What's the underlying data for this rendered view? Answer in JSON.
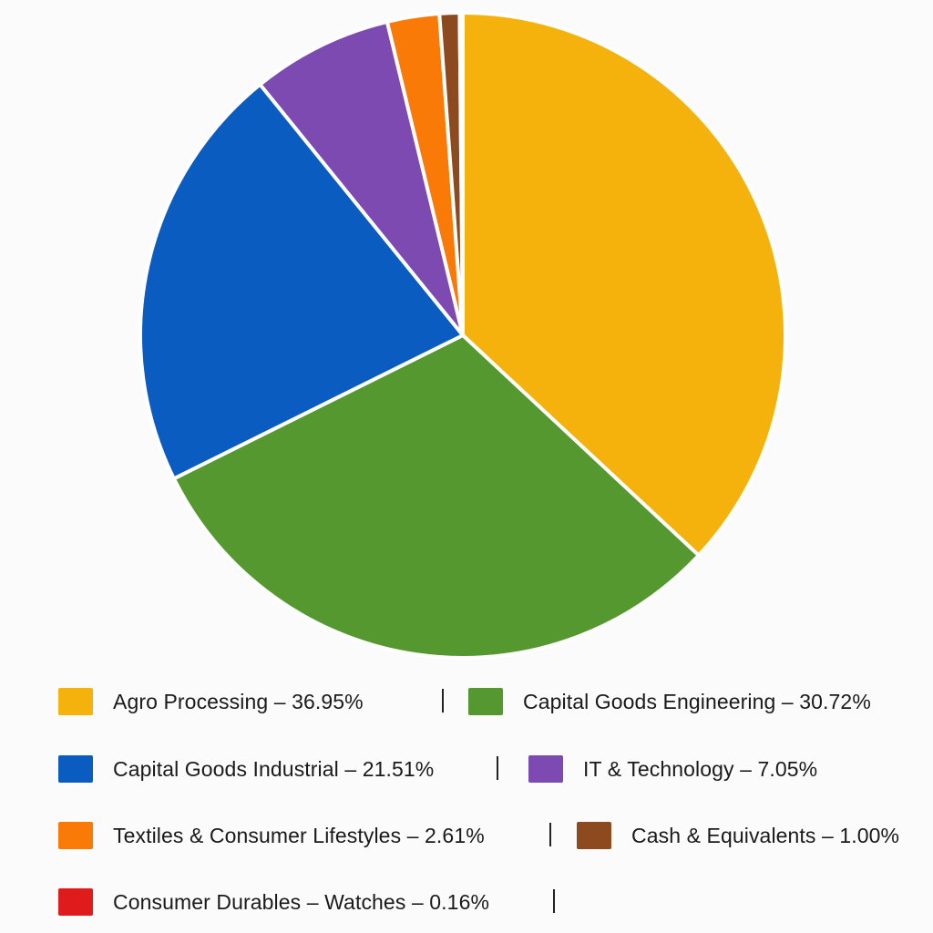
{
  "chart_data": {
    "type": "pie",
    "title": "",
    "slices": [
      {
        "label": "Agro Processing – 36.95%",
        "value": 36.95,
        "color": "#F6B20C"
      },
      {
        "label": "Capital Goods Engineering – 30.72%",
        "value": 30.72,
        "color": "#54982F"
      },
      {
        "label": "Capital Goods Industrial – 21.51%",
        "value": 21.51,
        "color": "#0B5CC0"
      },
      {
        "label": "IT & Technology – 7.05%",
        "value": 7.05,
        "color": "#7C4AB1"
      },
      {
        "label": "Textiles & Consumer Lifestyles – 2.61%",
        "value": 2.61,
        "color": "#FA7A08"
      },
      {
        "label": "Cash & Equivalents – 1.00%",
        "value": 1.0,
        "color": "#8D4A1E"
      },
      {
        "label": "Consumer Durables – Watches – 0.16%",
        "value": 0.16,
        "color": "#E01B1B"
      }
    ],
    "legend_placement": "bottom",
    "start_angle": "12 o'clock, clockwise"
  },
  "legend": {
    "separator": "|"
  }
}
